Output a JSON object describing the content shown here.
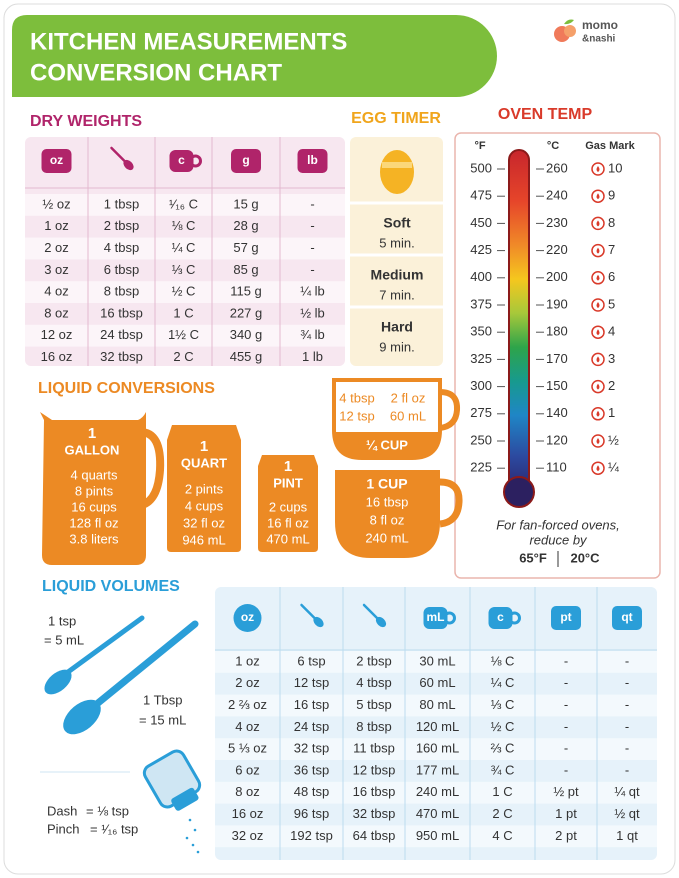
{
  "header": {
    "title_line1": "KITCHEN MEASUREMENTS",
    "title_line2": "CONVERSION CHART",
    "brand_line1": "momo",
    "brand_line2": "&nashi"
  },
  "dry_weights": {
    "title": "DRY WEIGHTS",
    "icon_labels": [
      "oz",
      "c",
      "g",
      "lb"
    ],
    "rows": [
      [
        "½ oz",
        "1 tbsp",
        "¹⁄₁₆ C",
        "15 g",
        "-"
      ],
      [
        "1 oz",
        "2 tbsp",
        "⅛ C",
        "28 g",
        "-"
      ],
      [
        "2 oz",
        "4 tbsp",
        "¼ C",
        "57 g",
        "-"
      ],
      [
        "3 oz",
        "6 tbsp",
        "⅓ C",
        "85 g",
        "-"
      ],
      [
        "4 oz",
        "8 tbsp",
        "½ C",
        "115 g",
        "¼ lb"
      ],
      [
        "8 oz",
        "16 tbsp",
        "1 C",
        "227 g",
        "½ lb"
      ],
      [
        "12 oz",
        "24 tbsp",
        "1½ C",
        "340 g",
        "¾ lb"
      ],
      [
        "16 oz",
        "32 tbsp",
        "2 C",
        "455 g",
        "1 lb"
      ]
    ]
  },
  "egg_timer": {
    "title": "EGG TIMER",
    "items": [
      {
        "label": "Soft",
        "time": "5 min."
      },
      {
        "label": "Medium",
        "time": "7 min."
      },
      {
        "label": "Hard",
        "time": "9 min."
      }
    ]
  },
  "oven_temp": {
    "title": "OVEN TEMP",
    "headers": [
      "°F",
      "°C",
      "Gas Mark"
    ],
    "rows": [
      [
        "500",
        "260",
        "10"
      ],
      [
        "475",
        "240",
        "9"
      ],
      [
        "450",
        "230",
        "8"
      ],
      [
        "425",
        "220",
        "7"
      ],
      [
        "400",
        "200",
        "6"
      ],
      [
        "375",
        "190",
        "5"
      ],
      [
        "350",
        "180",
        "4"
      ],
      [
        "325",
        "170",
        "3"
      ],
      [
        "300",
        "150",
        "2"
      ],
      [
        "275",
        "140",
        "1"
      ],
      [
        "250",
        "120",
        "½"
      ],
      [
        "225",
        "110",
        "¼"
      ]
    ],
    "note_line1": "For fan-forced ovens,",
    "note_line2": "reduce by",
    "note_f": "65°F",
    "note_c": "20°C"
  },
  "liquid_conversions": {
    "title": "LIQUID CONVERSIONS",
    "gallon": {
      "number": "1",
      "unit": "GALLON",
      "lines": [
        "4 quarts",
        "8 pints",
        "16 cups",
        "128 fl oz",
        "3.8 liters"
      ]
    },
    "quart": {
      "number": "1",
      "unit": "QUART",
      "lines": [
        "2 pints",
        "4 cups",
        "32 fl oz",
        "946 mL"
      ]
    },
    "pint": {
      "number": "1",
      "unit": "PINT",
      "lines": [
        "2 cups",
        "16 fl oz",
        "470 mL"
      ]
    },
    "quarter_cup": {
      "unit": "¼ CUP",
      "lines": [
        "4 tbsp",
        "12 tsp",
        "2 fl oz",
        "60 mL"
      ]
    },
    "cup": {
      "unit": "1 CUP",
      "lines": [
        "16 tbsp",
        "8 fl oz",
        "240 mL"
      ]
    }
  },
  "liquid_volumes": {
    "title": "LIQUID VOLUMES",
    "tsp_label": "1 tsp",
    "tsp_value": "= 5 mL",
    "tbsp_label": "1 Tbsp",
    "tbsp_value": "= 15 mL",
    "dash_label": "Dash",
    "dash_value": "= ⅛ tsp",
    "pinch_label": "Pinch",
    "pinch_value": "= ¹⁄₁₆ tsp",
    "icon_labels": [
      "oz",
      "mL",
      "c",
      "pt",
      "qt"
    ],
    "rows": [
      [
        "1 oz",
        "6 tsp",
        "2 tbsp",
        "30 mL",
        "⅛ C",
        "-",
        "-"
      ],
      [
        "2 oz",
        "12 tsp",
        "4 tbsp",
        "60 mL",
        "¼ C",
        "-",
        "-"
      ],
      [
        "2 ⅔ oz",
        "16 tsp",
        "5 tbsp",
        "80 mL",
        "⅓ C",
        "-",
        "-"
      ],
      [
        "4 oz",
        "24 tsp",
        "8 tbsp",
        "120 mL",
        "½ C",
        "-",
        "-"
      ],
      [
        "5 ⅓ oz",
        "32 tsp",
        "11 tbsp",
        "160 mL",
        "⅔ C",
        "-",
        "-"
      ],
      [
        "6 oz",
        "36 tsp",
        "12 tbsp",
        "177 mL",
        "¾ C",
        "-",
        "-"
      ],
      [
        "8 oz",
        "48 tsp",
        "16 tbsp",
        "240 mL",
        "1 C",
        "½ pt",
        "¼ qt"
      ],
      [
        "16 oz",
        "96 tsp",
        "32 tbsp",
        "470 mL",
        "2 C",
        "1 pt",
        "½ qt"
      ],
      [
        "32 oz",
        "192 tsp",
        "64 tbsp",
        "950 mL",
        "4 C",
        "2 pt",
        "1 qt"
      ]
    ]
  }
}
